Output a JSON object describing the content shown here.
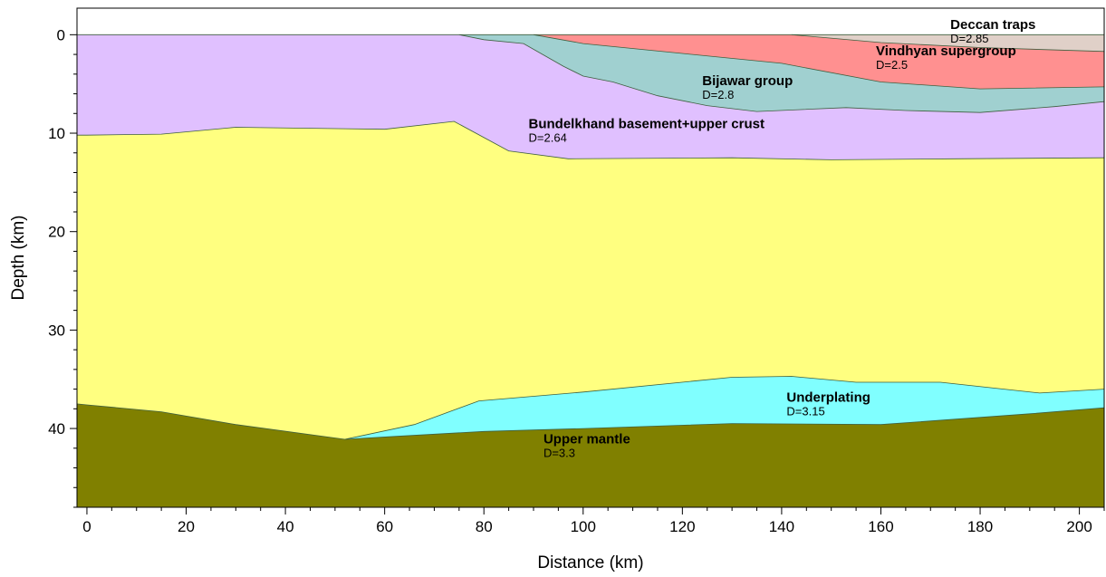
{
  "chart_data": {
    "type": "area",
    "xlabel": "Distance (km)",
    "ylabel": "Depth (km)",
    "xlim": [
      -2,
      205
    ],
    "ylim": [
      -2.7,
      48
    ],
    "y_inverted": true,
    "x_ticks": [
      0,
      20,
      40,
      60,
      80,
      100,
      120,
      140,
      160,
      180,
      200
    ],
    "y_ticks": [
      0,
      10,
      20,
      30,
      40
    ],
    "grid": false,
    "colors": {
      "background": "#ffffff",
      "boundary": "#3f5f3f",
      "axis": "#000000"
    },
    "layers": [
      {
        "name": "Upper mantle",
        "density_label": "D=3.3",
        "color": "#808000",
        "label_at": [
          92,
          41.5
        ],
        "top": [
          [
            -2,
            37.5
          ],
          [
            0,
            37.6
          ],
          [
            15,
            38.3
          ],
          [
            30,
            39.6
          ],
          [
            52,
            41.1
          ],
          [
            62,
            40.8
          ],
          [
            80,
            40.3
          ],
          [
            100,
            40.0
          ],
          [
            130,
            39.5
          ],
          [
            160,
            39.6
          ],
          [
            190,
            38.5
          ],
          [
            205,
            37.9
          ]
        ],
        "bottom": [
          [
            -2,
            48
          ],
          [
            205,
            48
          ]
        ]
      },
      {
        "name": "Underplating",
        "density_label": "D=3.15",
        "color": "#80ffff",
        "label_at": [
          141,
          37.3
        ],
        "top": [
          [
            52,
            41.1
          ],
          [
            66,
            39.6
          ],
          [
            79,
            37.2
          ],
          [
            100,
            36.3
          ],
          [
            130,
            34.8
          ],
          [
            142,
            34.7
          ],
          [
            155,
            35.3
          ],
          [
            172,
            35.3
          ],
          [
            192,
            36.4
          ],
          [
            205,
            36.0
          ]
        ],
        "bottom": [
          [
            52,
            41.1
          ],
          [
            62,
            40.8
          ],
          [
            80,
            40.3
          ],
          [
            100,
            40.0
          ],
          [
            130,
            39.5
          ],
          [
            160,
            39.6
          ],
          [
            190,
            38.5
          ],
          [
            205,
            37.9
          ]
        ]
      },
      {
        "name": "",
        "density_label": "",
        "color": "#ffff80",
        "top": [
          [
            -2,
            10.2
          ],
          [
            0,
            10.2
          ],
          [
            15,
            10.1
          ],
          [
            30,
            9.4
          ],
          [
            45,
            9.5
          ],
          [
            60,
            9.6
          ],
          [
            74,
            8.8
          ],
          [
            85,
            11.8
          ],
          [
            97,
            12.6
          ],
          [
            130,
            12.5
          ],
          [
            150,
            12.7
          ],
          [
            175,
            12.6
          ],
          [
            205,
            12.5
          ]
        ],
        "bottom": [
          [
            -2,
            37.5
          ],
          [
            0,
            37.6
          ],
          [
            15,
            38.3
          ],
          [
            30,
            39.6
          ],
          [
            52,
            41.1
          ],
          [
            66,
            39.6
          ],
          [
            79,
            37.2
          ],
          [
            100,
            36.3
          ],
          [
            130,
            34.8
          ],
          [
            142,
            34.7
          ],
          [
            155,
            35.3
          ],
          [
            172,
            35.3
          ],
          [
            192,
            36.4
          ],
          [
            205,
            36.0
          ]
        ]
      },
      {
        "name": "Bundelkhand basement+upper crust",
        "density_label": "D=2.64",
        "color": "#e0c0ff",
        "label_at": [
          89,
          9.5
        ],
        "top": [
          [
            -2,
            0
          ],
          [
            75,
            0
          ],
          [
            80,
            0.5
          ],
          [
            88,
            0.9
          ],
          [
            96,
            3.2
          ],
          [
            100,
            4.2
          ],
          [
            106,
            4.8
          ],
          [
            115,
            6.2
          ],
          [
            125,
            7.2
          ],
          [
            135,
            7.8
          ],
          [
            153,
            7.4
          ],
          [
            165,
            7.7
          ],
          [
            180,
            7.9
          ],
          [
            195,
            7.3
          ],
          [
            205,
            6.8
          ]
        ],
        "bottom": [
          [
            -2,
            10.2
          ],
          [
            0,
            10.2
          ],
          [
            15,
            10.1
          ],
          [
            30,
            9.4
          ],
          [
            45,
            9.5
          ],
          [
            60,
            9.6
          ],
          [
            74,
            8.8
          ],
          [
            85,
            11.8
          ],
          [
            97,
            12.6
          ],
          [
            130,
            12.5
          ],
          [
            150,
            12.7
          ],
          [
            175,
            12.6
          ],
          [
            205,
            12.5
          ]
        ]
      },
      {
        "name": "Bijawar group",
        "density_label": "D=2.8",
        "color": "#a0d0d0",
        "label_at": [
          124,
          5.1
        ],
        "top": [
          [
            75,
            0
          ],
          [
            90,
            0
          ],
          [
            100,
            0.9
          ],
          [
            120,
            1.9
          ],
          [
            140,
            2.9
          ],
          [
            160,
            4.8
          ],
          [
            180,
            5.5
          ],
          [
            205,
            5.3
          ]
        ],
        "bottom": [
          [
            75,
            0
          ],
          [
            80,
            0.5
          ],
          [
            88,
            0.9
          ],
          [
            96,
            3.2
          ],
          [
            100,
            4.2
          ],
          [
            106,
            4.8
          ],
          [
            115,
            6.2
          ],
          [
            125,
            7.2
          ],
          [
            135,
            7.8
          ],
          [
            153,
            7.4
          ],
          [
            165,
            7.7
          ],
          [
            180,
            7.9
          ],
          [
            195,
            7.3
          ],
          [
            205,
            6.8
          ]
        ]
      },
      {
        "name": "Vindhyan supergroup",
        "density_label": "D=2.5",
        "color": "#ff9090",
        "label_at": [
          159,
          2.1
        ],
        "top": [
          [
            90,
            0
          ],
          [
            142,
            0
          ],
          [
            160,
            0.8
          ],
          [
            180,
            1.3
          ],
          [
            205,
            1.7
          ]
        ],
        "bottom": [
          [
            90,
            0
          ],
          [
            100,
            0.9
          ],
          [
            120,
            1.9
          ],
          [
            140,
            2.9
          ],
          [
            160,
            4.8
          ],
          [
            180,
            5.5
          ],
          [
            205,
            5.3
          ]
        ]
      },
      {
        "name": "Deccan traps",
        "density_label": "D=2.85",
        "color": "#e0d0c8",
        "label_at": [
          174,
          -0.6
        ],
        "top": [
          [
            142,
            0
          ],
          [
            205,
            0
          ]
        ],
        "bottom": [
          [
            142,
            0
          ],
          [
            160,
            0.8
          ],
          [
            180,
            1.3
          ],
          [
            205,
            1.7
          ]
        ]
      }
    ]
  }
}
